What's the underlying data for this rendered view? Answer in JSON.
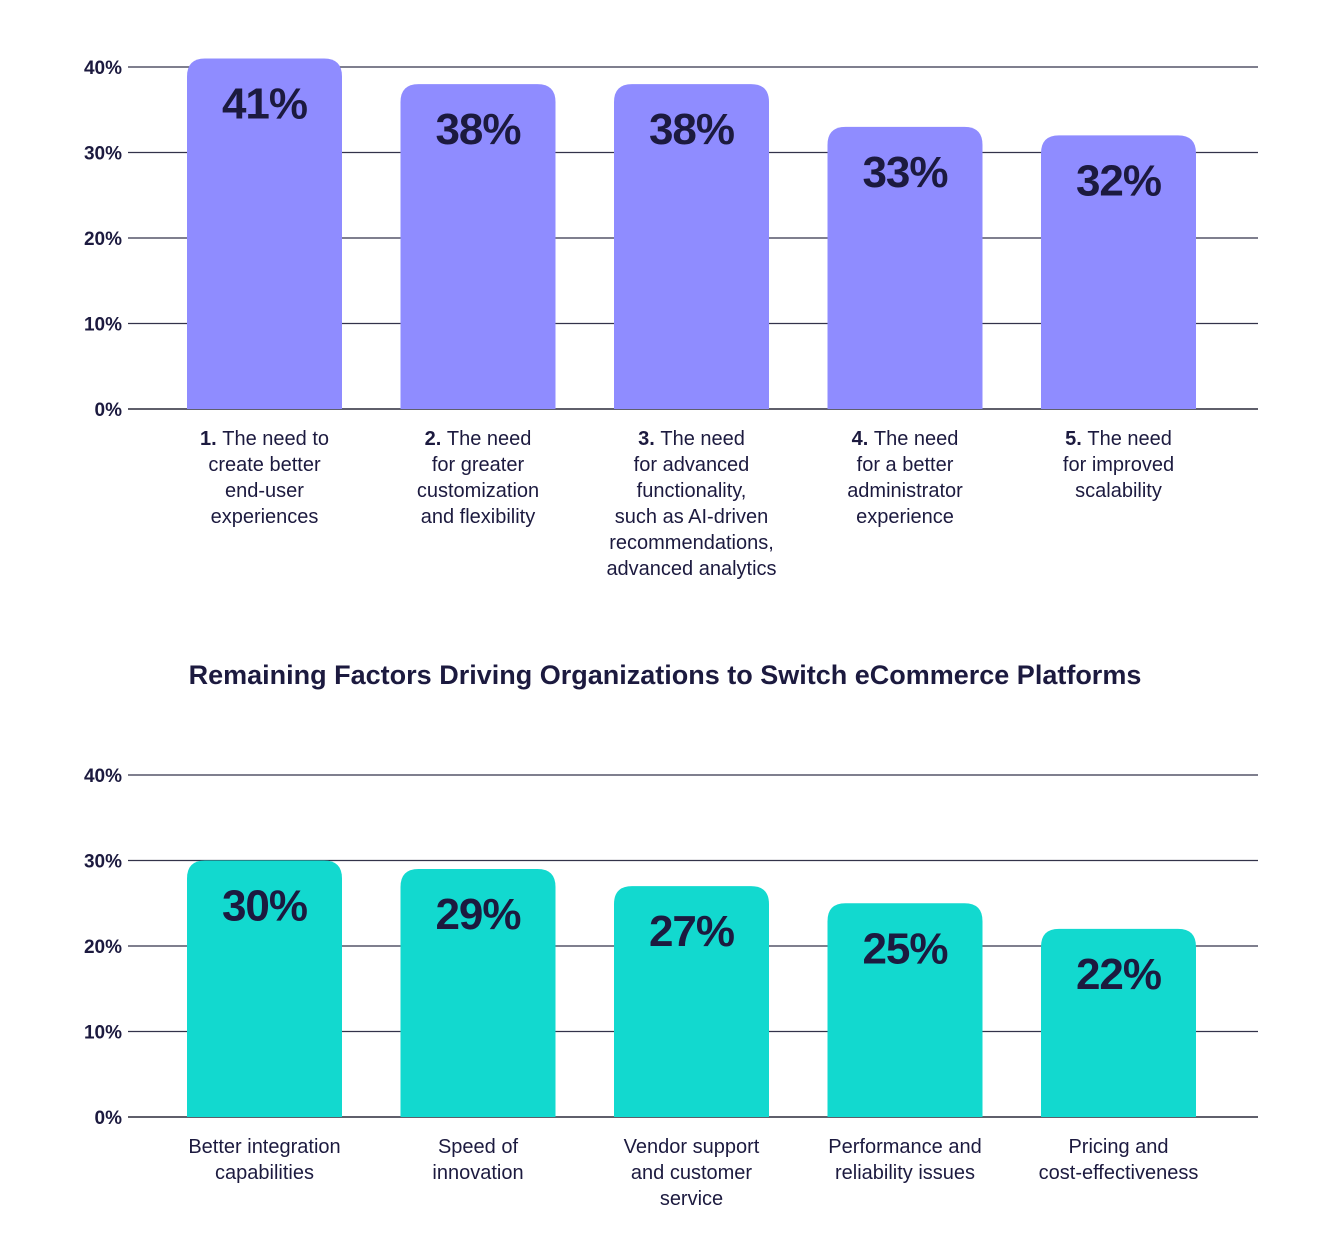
{
  "chart_data": [
    {
      "type": "bar",
      "title": "",
      "xlabel": "",
      "ylabel": "",
      "ylim": [
        0,
        40
      ],
      "yticks": [
        "0%",
        "10%",
        "20%",
        "30%",
        "40%"
      ],
      "grid": true,
      "bar_color": "#8f8cff",
      "categories": [
        {
          "num": "1.",
          "lines": [
            "The need to",
            "create better",
            "end-user",
            "experiences"
          ]
        },
        {
          "num": "2.",
          "lines": [
            "The need",
            "for greater",
            "customization",
            "and flexibility"
          ]
        },
        {
          "num": "3.",
          "lines": [
            "The need",
            "for advanced",
            "functionality,",
            "such as AI-driven",
            "recommendations,",
            "advanced analytics"
          ]
        },
        {
          "num": "4.",
          "lines": [
            "The need",
            "for a better",
            "administrator",
            "experience"
          ]
        },
        {
          "num": "5.",
          "lines": [
            "The need",
            "for improved",
            "scalability"
          ]
        }
      ],
      "values": [
        41,
        38,
        38,
        33,
        32
      ],
      "value_labels": [
        "41%",
        "38%",
        "38%",
        "33%",
        "32%"
      ]
    },
    {
      "type": "bar",
      "title": "Remaining Factors Driving Organizations to Switch eCommerce Platforms",
      "xlabel": "",
      "ylabel": "",
      "ylim": [
        0,
        40
      ],
      "yticks": [
        "0%",
        "10%",
        "20%",
        "30%",
        "40%"
      ],
      "grid": true,
      "bar_color": "#12d9cf",
      "categories": [
        {
          "num": "",
          "lines": [
            "Better integration",
            "capabilities"
          ]
        },
        {
          "num": "",
          "lines": [
            "Speed of",
            "innovation"
          ]
        },
        {
          "num": "",
          "lines": [
            "Vendor support",
            "and customer",
            "service"
          ]
        },
        {
          "num": "",
          "lines": [
            "Performance and",
            "reliability issues"
          ]
        },
        {
          "num": "",
          "lines": [
            "Pricing and",
            "cost-effectiveness"
          ]
        }
      ],
      "values": [
        30,
        29,
        27,
        25,
        22
      ],
      "value_labels": [
        "30%",
        "29%",
        "27%",
        "25%",
        "22%"
      ]
    }
  ]
}
